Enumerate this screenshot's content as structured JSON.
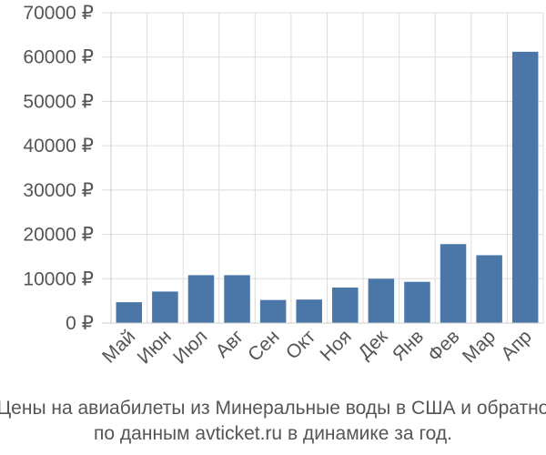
{
  "chart_data": {
    "type": "bar",
    "categories": [
      "Май",
      "Июн",
      "Июл",
      "Авг",
      "Сен",
      "Окт",
      "Ноя",
      "Дек",
      "Янв",
      "Фев",
      "Мар",
      "Апр"
    ],
    "values": [
      4700,
      7100,
      10800,
      10800,
      5200,
      5300,
      8000,
      10000,
      9300,
      17800,
      15300,
      61200
    ],
    "ylim": [
      0,
      70000
    ],
    "yticks": [
      0,
      10000,
      20000,
      30000,
      40000,
      50000,
      60000,
      70000
    ],
    "ytick_labels": [
      "0 ₽",
      "10000 ₽",
      "20000 ₽",
      "30000 ₽",
      "40000 ₽",
      "50000 ₽",
      "60000 ₽",
      "70000 ₽"
    ],
    "bar_color": "#4a76a8",
    "grid": true,
    "caption_line1": "Цены на авиабилеты из Минеральные воды в США и обратно",
    "caption_line2": "по данным avticket.ru в динамике за год."
  }
}
